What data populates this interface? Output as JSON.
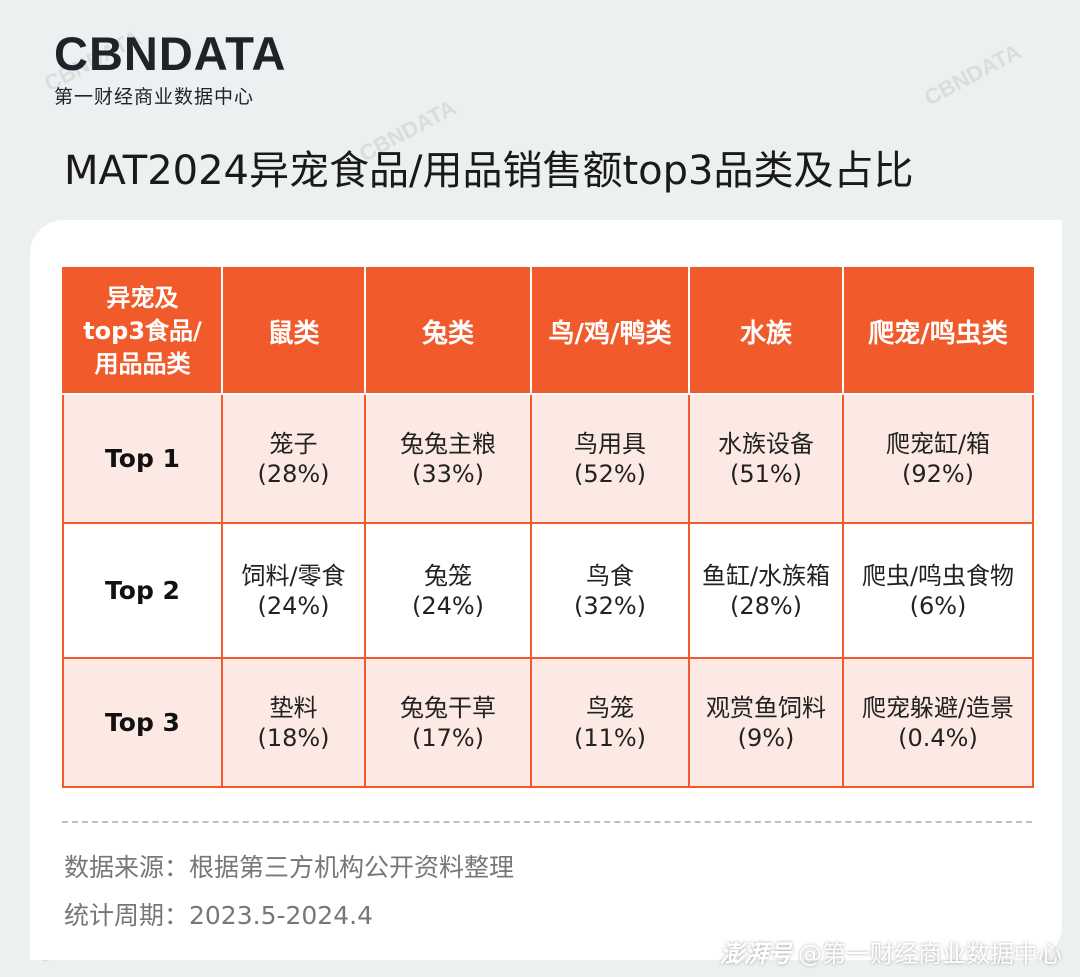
{
  "logo": {
    "wordmark": "CBNDATA",
    "subtitle": "第一财经商业数据中心"
  },
  "title": "MAT2024异宠食品/用品销售额top3品类及占比",
  "table": {
    "corner_header": [
      "异宠及",
      "top3食品/",
      "用品品类"
    ],
    "columns": [
      "鼠类",
      "兔类",
      "鸟/鸡/鸭类",
      "水族",
      "爬宠/鸣虫类"
    ],
    "rows": [
      {
        "label": "Top 1",
        "cells": [
          {
            "name": "笼子",
            "pct": "(28%)"
          },
          {
            "name": "兔兔主粮",
            "pct": "(33%)"
          },
          {
            "name": "鸟用具",
            "pct": "(52%)"
          },
          {
            "name": "水族设备",
            "pct": "(51%)"
          },
          {
            "name": "爬宠缸/箱",
            "pct": "(92%)"
          }
        ]
      },
      {
        "label": "Top 2",
        "cells": [
          {
            "name": "饲料/零食",
            "pct": "(24%)"
          },
          {
            "name": "兔笼",
            "pct": "(24%)"
          },
          {
            "name": "鸟食",
            "pct": "(32%)"
          },
          {
            "name": "鱼缸/水族箱",
            "pct": "(28%)"
          },
          {
            "name": "爬虫/鸣虫食物",
            "pct": "(6%)"
          }
        ]
      },
      {
        "label": "Top 3",
        "cells": [
          {
            "name": "垫料",
            "pct": "(18%)"
          },
          {
            "name": "兔兔干草",
            "pct": "(17%)"
          },
          {
            "name": "鸟笼",
            "pct": "(11%)"
          },
          {
            "name": "观赏鱼饲料",
            "pct": "(9%)"
          },
          {
            "name": "爬宠躲避/造景",
            "pct": "(0.4%)"
          }
        ]
      }
    ]
  },
  "footer": {
    "source": "数据来源：根据第三方机构公开资料整理",
    "period": "统计周期：2023.5-2024.4"
  },
  "watermark": "CBNDATA",
  "credit": {
    "badge": "澎湃号",
    "text": "@第一财经商业数据中心"
  },
  "colors": {
    "accent": "#f15a2b",
    "row_tint": "#fde9e3",
    "background": "#edf0f1"
  }
}
